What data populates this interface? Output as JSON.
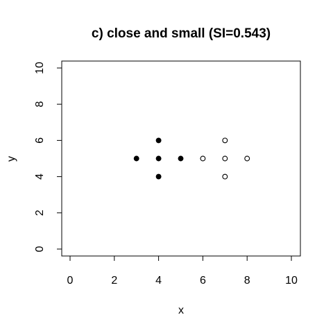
{
  "chart_data": {
    "type": "scatter",
    "title": "c) close and small (SI=0.543)",
    "xlabel": "x",
    "ylabel": "y",
    "xlim": [
      0,
      10
    ],
    "ylim": [
      0,
      10
    ],
    "xticks": [
      "0",
      "2",
      "4",
      "6",
      "8",
      "10"
    ],
    "yticks": [
      "0",
      "2",
      "4",
      "6",
      "8",
      "10"
    ],
    "grid": false,
    "legend": "none",
    "series": [
      {
        "marker": "filled-circle",
        "color": "#000000",
        "x": [
          3,
          4,
          4,
          4,
          5
        ],
        "y": [
          5,
          6,
          5,
          4,
          5
        ]
      },
      {
        "marker": "open-circle",
        "color": "#000000",
        "x": [
          6,
          7,
          7,
          7,
          8
        ],
        "y": [
          5,
          6,
          5,
          4,
          5
        ]
      }
    ]
  }
}
